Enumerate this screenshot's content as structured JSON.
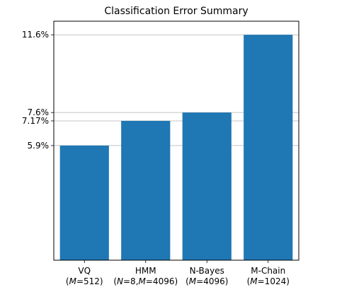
{
  "chart_data": {
    "type": "bar",
    "title": "Classification Error Summary",
    "xlabel": "",
    "ylabel": "",
    "categories": [
      {
        "name": "VQ",
        "sub_prefix": "(",
        "sub_var": "M",
        "sub_rest": "=512)"
      },
      {
        "name": "HMM",
        "sub_prefix": "(",
        "sub_var": "N",
        "sub_mid": "=8,",
        "sub_var2": "M",
        "sub_rest": "=4096)"
      },
      {
        "name": "N-Bayes",
        "sub_prefix": "(",
        "sub_var": "M",
        "sub_rest": "=4096)"
      },
      {
        "name": "M-Chain",
        "sub_prefix": "(",
        "sub_var": "M",
        "sub_rest": "=1024)"
      }
    ],
    "values": [
      5.9,
      7.17,
      7.6,
      11.6
    ],
    "yticks": [
      {
        "value": 5.9,
        "label": "5.9%"
      },
      {
        "value": 7.17,
        "label": "7.17%"
      },
      {
        "value": 7.6,
        "label": "7.6%"
      },
      {
        "value": 11.6,
        "label": "11.6%"
      }
    ],
    "ylim": [
      0,
      12.3
    ],
    "grid_y": true,
    "bar_color": "#1f77b4"
  }
}
